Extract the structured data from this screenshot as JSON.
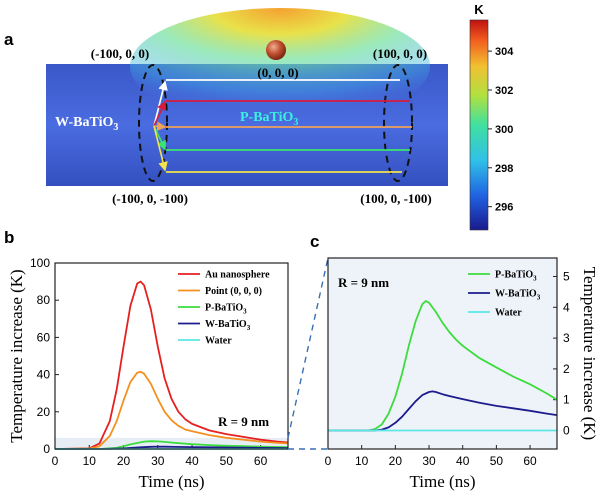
{
  "panel_a": {
    "label": "a",
    "colorbar": {
      "unit": "K",
      "ticks": [
        {
          "value": 296,
          "label": "296"
        },
        {
          "value": 298,
          "label": "298"
        },
        {
          "value": 300,
          "label": "300"
        },
        {
          "value": 302,
          "label": "302"
        },
        {
          "value": 304,
          "label": "304"
        }
      ],
      "min": 294.8,
      "max": 305.6
    },
    "points": {
      "top_left": "(-100, 0, 0)",
      "top_right": "(100, 0, 0)",
      "center": "(0, 0, 0)",
      "bottom_left": "(-100, 0, -100)",
      "bottom_right": "(100, 0, -100)"
    },
    "region_w_base": "W-BaTiO",
    "region_w_sub": "3",
    "region_p_base": "P-BaTiO",
    "region_p_sub": "3",
    "line_colors": [
      "#ffffff",
      "#d81b3c",
      "#f0a15a",
      "#39e66b",
      "#f2e24c"
    ]
  },
  "panel_b": {
    "label": "b"
  },
  "panel_c": {
    "label": "c"
  },
  "colors": {
    "au": "#e62020",
    "point": "#f5901e",
    "p": "#3cdc3c",
    "w": "#1c1c8c",
    "water": "#5ce6e6",
    "dash": "#3a6fb3",
    "band": "#e6edf5",
    "c_bg": "#eef3f9"
  },
  "chart_data": [
    {
      "id": "b",
      "type": "line",
      "title": "",
      "xlabel": "Time (ns)",
      "ylabel": "Temperature increase (K)",
      "xlim": [
        0,
        68
      ],
      "ylim": [
        0,
        100
      ],
      "xticks": [
        0,
        10,
        20,
        30,
        40,
        50,
        60
      ],
      "yticks": [
        0,
        20,
        40,
        60,
        80,
        100
      ],
      "annotation": "R = 9 nm",
      "legend_position": "top-right",
      "series": [
        {
          "name": "Au nanosphere",
          "name_base": "Au nanosphere",
          "name_sub": "",
          "color_key": "au",
          "x": [
            0,
            10,
            13,
            16,
            18,
            20,
            22,
            24,
            25,
            26,
            28,
            30,
            32,
            34,
            36,
            38,
            40,
            45,
            50,
            55,
            60,
            65,
            68
          ],
          "y": [
            0,
            0.3,
            3,
            15,
            32,
            55,
            77,
            89,
            90,
            88,
            75,
            55,
            38,
            27,
            20,
            16,
            13.5,
            10,
            8,
            6.5,
            5,
            4,
            3.5
          ]
        },
        {
          "name": "Point (0, 0, 0)",
          "name_base": "Point (0, 0, 0)",
          "name_sub": "",
          "color_key": "point",
          "x": [
            0,
            10,
            13,
            16,
            18,
            20,
            22,
            24,
            25,
            26,
            28,
            30,
            32,
            34,
            36,
            38,
            40,
            45,
            50,
            55,
            60,
            65,
            68
          ],
          "y": [
            0,
            0.2,
            1.5,
            7,
            15,
            26,
            36,
            41,
            41.5,
            40.5,
            35,
            27,
            20,
            15.5,
            12.5,
            10.5,
            9.5,
            7.5,
            6,
            5,
            4,
            3.3,
            3
          ]
        },
        {
          "name": "P-BaTiO3",
          "name_base": "P-BaTiO",
          "name_sub": "3",
          "color_key": "p",
          "x": [
            0,
            14,
            18,
            22,
            26,
            28,
            30,
            32,
            35,
            40,
            45,
            50,
            55,
            60,
            65,
            68
          ],
          "y": [
            0,
            0.1,
            0.6,
            2.5,
            4,
            4.2,
            4.1,
            3.8,
            3.3,
            2.6,
            2.1,
            1.7,
            1.5,
            1.3,
            1.1,
            1
          ]
        },
        {
          "name": "W-BaTiO3",
          "name_base": "W-BaTiO",
          "name_sub": "3",
          "color_key": "w",
          "x": [
            0,
            15,
            20,
            25,
            28,
            30,
            32,
            35,
            40,
            45,
            50,
            55,
            60,
            65,
            68
          ],
          "y": [
            0,
            0.05,
            0.3,
            0.9,
            1.2,
            1.3,
            1.25,
            1.15,
            1,
            0.9,
            0.8,
            0.7,
            0.6,
            0.55,
            0.5
          ]
        },
        {
          "name": "Water",
          "name_base": "Water",
          "name_sub": "",
          "color_key": "water",
          "x": [
            0,
            68
          ],
          "y": [
            0,
            0
          ]
        }
      ]
    },
    {
      "id": "c",
      "type": "line",
      "title": "",
      "xlabel": "Time (ns)",
      "ylabel": "Temperature increase (K)",
      "xlim": [
        0,
        68
      ],
      "ylim": [
        -0.6,
        5.6
      ],
      "xticks": [
        0,
        10,
        20,
        30,
        40,
        50,
        60
      ],
      "yticks": [
        0,
        1,
        2,
        3,
        4,
        5
      ],
      "annotation": "R = 9 nm",
      "legend_position": "top-right",
      "series": [
        {
          "name": "P-BaTiO3",
          "name_base": "P-BaTiO",
          "name_sub": "3",
          "color_key": "p",
          "x": [
            0,
            12,
            14,
            16,
            18,
            20,
            22,
            24,
            26,
            28,
            29,
            30,
            32,
            34,
            36,
            38,
            40,
            45,
            50,
            55,
            60,
            65,
            68
          ],
          "y": [
            0,
            0,
            0.05,
            0.2,
            0.55,
            1.1,
            1.85,
            2.75,
            3.55,
            4.1,
            4.2,
            4.15,
            3.85,
            3.5,
            3.2,
            2.95,
            2.75,
            2.35,
            2.05,
            1.75,
            1.5,
            1.2,
            1.0
          ]
        },
        {
          "name": "W-BaTiO3",
          "name_base": "W-BaTiO",
          "name_sub": "3",
          "color_key": "w",
          "x": [
            0,
            14,
            16,
            18,
            20,
            22,
            24,
            26,
            28,
            30,
            31,
            32,
            34,
            36,
            40,
            45,
            50,
            55,
            60,
            65,
            68
          ],
          "y": [
            0,
            0,
            0.03,
            0.1,
            0.25,
            0.45,
            0.7,
            0.95,
            1.15,
            1.25,
            1.27,
            1.25,
            1.18,
            1.12,
            1.02,
            0.9,
            0.8,
            0.72,
            0.64,
            0.55,
            0.5
          ]
        },
        {
          "name": "Water",
          "name_base": "Water",
          "name_sub": "",
          "color_key": "water",
          "x": [
            0,
            68
          ],
          "y": [
            0,
            0
          ]
        }
      ]
    }
  ]
}
